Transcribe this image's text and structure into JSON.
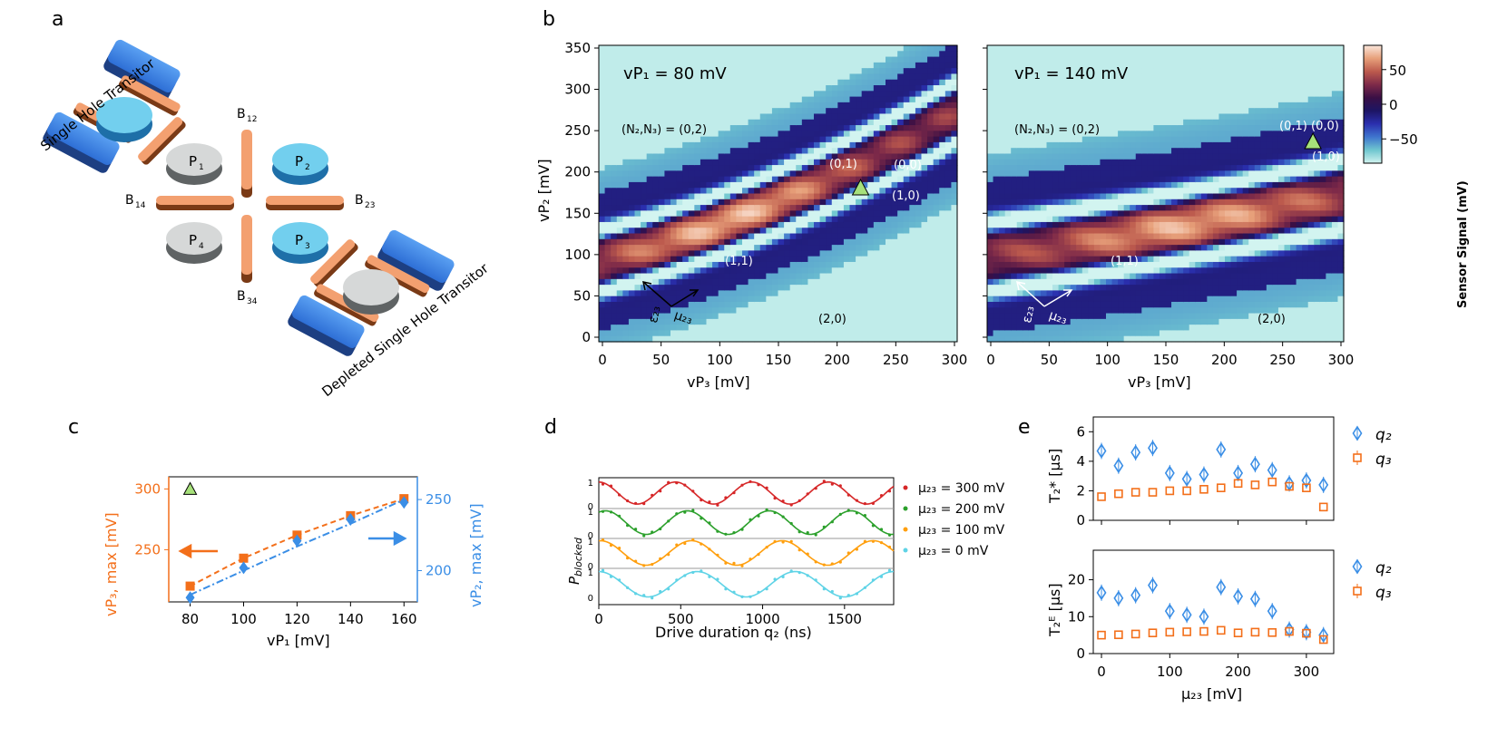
{
  "panels": {
    "a": {
      "letter": "a",
      "labels": {
        "single_hole": "Single Hole Transitor",
        "depleted": "Depleted Single Hole Transitor",
        "p1": "P",
        "p1_sub": "1",
        "p2": "P",
        "p2_sub": "2",
        "p3": "P",
        "p3_sub": "3",
        "p4": "P",
        "p4_sub": "4",
        "b12": "B",
        "b12_sub": "12",
        "b14": "B",
        "b14_sub": "14",
        "b23": "B",
        "b23_sub": "23",
        "b34": "B",
        "b34_sub": "34"
      }
    },
    "b": {
      "letter": "b",
      "xlabel": "vP₃ [mV]",
      "ylabel": "vP₂ [mV]",
      "xticks": [
        0,
        50,
        100,
        150,
        200,
        250,
        300
      ],
      "yticks": [
        0,
        50,
        100,
        150,
        200,
        250,
        300,
        350
      ],
      "left": {
        "title": "vP₁ = 80 mV",
        "n_label": "(N₂,N₃) = (0,2)",
        "states": {
          "s01": "(0,1)",
          "s00": "(0,0)",
          "s10": "(1,0)",
          "s11": "(1,1)",
          "s20": "(2,0)"
        },
        "eps": "ε₂₃",
        "mu": "μ₂₃",
        "triangle": {
          "x": 220,
          "y": 181
        }
      },
      "right": {
        "title": "vP₁ = 140 mV",
        "n_label": "(N₂,N₃) = (0,2)",
        "states": {
          "s01": "(0,1)",
          "s00": "(0,0)",
          "s10": "(1,0)",
          "s11": "(1,1)",
          "s20": "(2,0)"
        },
        "eps": "ε₂₃",
        "mu": "μ₂₃",
        "triangle": {
          "x": 276,
          "y": 237
        }
      },
      "colorbar": {
        "label": "Sensor Signal (mV)",
        "ticks": [
          50,
          0,
          -50
        ],
        "range": [
          -85,
          85
        ],
        "colors": [
          "#d2f4f0",
          "#6fc6cf",
          "#3f75ce",
          "#2a2fae",
          "#1d1564",
          "#3a0f45",
          "#7e2a49",
          "#bc5a4d",
          "#e7a07a",
          "#fbe7dc"
        ]
      }
    },
    "c": {
      "letter": "c",
      "xlabel": "vP₁ [mV]",
      "ylabel_left": "vP₃, max [mV]",
      "ylabel_right": "vP₂, max [mV]",
      "xticks": [
        80,
        100,
        120,
        140,
        160
      ],
      "yticks_left": [
        250,
        300
      ],
      "yticks_right": [
        200,
        250
      ],
      "triangle": {
        "x": 80,
        "y": 300
      }
    },
    "d": {
      "letter": "d",
      "xlabel": "Drive duration q₂ (ns)",
      "ylabel": "P_blocked",
      "xticks": [
        0,
        500,
        1000,
        1500
      ],
      "tick_labels": [
        "1",
        "0",
        "1",
        "0",
        "1",
        "0",
        "1",
        "0"
      ],
      "legend": [
        "μ₂₃ = 300 mV",
        "μ₂₃ = 200 mV",
        "μ₂₃ = 100 mV",
        "μ₂₃ = 0 mV"
      ],
      "colors": [
        "#d62728",
        "#2ca02c",
        "#ff9f0e",
        "#5fd3e6"
      ]
    },
    "e": {
      "letter": "e",
      "xlabel": "μ₂₃ [mV]",
      "xticks": [
        0,
        100,
        200,
        300
      ],
      "top": {
        "ylabel": "T₂* [μs]",
        "yticks": [
          0,
          2,
          4,
          6
        ]
      },
      "bottom": {
        "ylabel": "T₂ᴱ [μs]",
        "yticks": [
          0,
          10,
          20
        ]
      },
      "legend": [
        "q₂",
        "q₃"
      ]
    }
  },
  "chart_data": [
    {
      "type": "heatmap",
      "title": "vP₁ = 80 mV",
      "xlabel": "vP₃ [mV]",
      "ylabel": "vP₂ [mV]",
      "xlim": [
        0,
        300
      ],
      "ylim": [
        0,
        350
      ],
      "colorbar_label": "Sensor Signal (mV)"
    },
    {
      "type": "heatmap",
      "title": "vP₁ = 140 mV",
      "xlabel": "vP₃ [mV]",
      "ylabel": "vP₂ [mV]",
      "xlim": [
        0,
        300
      ],
      "ylim": [
        0,
        350
      ],
      "colorbar_label": "Sensor Signal (mV)"
    },
    {
      "type": "scatter",
      "xlabel": "vP₁ [mV]",
      "x": [
        80,
        100,
        120,
        140,
        160
      ],
      "series": [
        {
          "name": "vP₃, max",
          "axis": "left",
          "values": [
            220,
            243,
            262,
            278,
            292
          ],
          "fit": [
            220,
            243,
            262,
            278,
            292
          ],
          "color": "#f36f1a"
        },
        {
          "name": "vP₂, max",
          "axis": "right",
          "values": [
            181,
            202,
            221,
            236,
            248
          ],
          "fit": [
            183,
            200,
            217,
            233,
            250
          ],
          "color": "#3a8ee6"
        }
      ],
      "xlim": [
        72,
        165
      ],
      "ylim_left": [
        207,
        310
      ],
      "ylim_right": [
        178,
        266
      ]
    },
    {
      "type": "line",
      "xlabel": "Drive duration q₂ (ns)",
      "ylabel": "P_blocked",
      "xlim": [
        0,
        1800
      ],
      "series": [
        {
          "name": "μ₂₃ = 300 mV",
          "period": 467,
          "phase": 0,
          "amp": 0.42,
          "mid": 0.52
        },
        {
          "name": "μ₂₃ = 200 mV",
          "period": 500,
          "phase": 40,
          "amp": 0.45,
          "mid": 0.5
        },
        {
          "name": "μ₂₃ = 100 mV",
          "period": 555,
          "phase": 10,
          "amp": 0.45,
          "mid": 0.5
        },
        {
          "name": "μ₂₃ = 0 mV",
          "period": 600,
          "phase": 0,
          "amp": 0.45,
          "mid": 0.5
        }
      ]
    },
    {
      "type": "scatter",
      "xlabel": "μ₂₃ [mV]",
      "ylabel": "T₂* [μs]",
      "x": [
        0,
        25,
        50,
        75,
        100,
        125,
        150,
        175,
        200,
        225,
        250,
        275,
        300,
        325
      ],
      "series": [
        {
          "name": "q₂",
          "values": [
            4.7,
            3.7,
            4.6,
            4.9,
            3.2,
            2.8,
            3.1,
            4.8,
            3.2,
            3.8,
            3.4,
            2.5,
            2.7,
            2.4
          ]
        },
        {
          "name": "q₃",
          "values": [
            1.6,
            1.8,
            1.9,
            1.9,
            2.0,
            2.0,
            2.1,
            2.2,
            2.5,
            2.4,
            2.6,
            2.3,
            2.2,
            0.9
          ]
        }
      ],
      "xlim": [
        -12,
        340
      ],
      "ylim": [
        0,
        7
      ]
    },
    {
      "type": "scatter",
      "xlabel": "μ₂₃ [mV]",
      "ylabel": "T₂ᴱ [μs]",
      "x": [
        0,
        25,
        50,
        75,
        100,
        125,
        150,
        175,
        200,
        225,
        250,
        275,
        300,
        325
      ],
      "series": [
        {
          "name": "q₂",
          "values": [
            16.5,
            15.0,
            15.8,
            18.5,
            11.5,
            10.5,
            10.0,
            18.0,
            15.5,
            14.8,
            11.5,
            6.5,
            5.8,
            5.0
          ]
        },
        {
          "name": "q₃",
          "values": [
            5.0,
            5.1,
            5.3,
            5.6,
            5.8,
            5.9,
            6.0,
            6.3,
            5.6,
            5.8,
            5.7,
            6.0,
            5.5,
            3.8
          ]
        }
      ],
      "xlim": [
        -12,
        340
      ],
      "ylim": [
        0,
        28
      ]
    }
  ]
}
